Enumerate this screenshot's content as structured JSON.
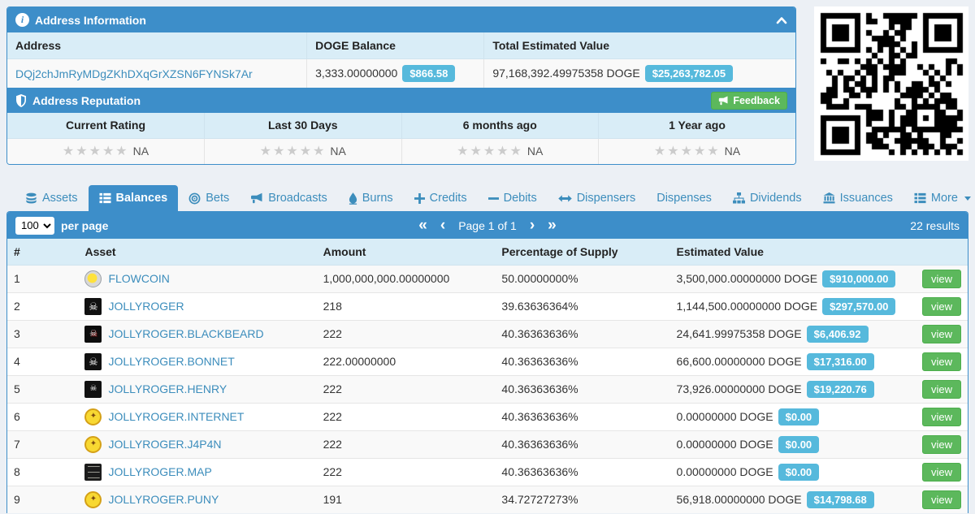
{
  "colors": {
    "header_blue": "#3d8ec9",
    "table_head_bg": "#d9edf7",
    "badge_blue": "#56b9dc",
    "button_green": "#5cb85c",
    "link_blue": "#3c8dbc",
    "star_gray": "#cccccc"
  },
  "address_info": {
    "title": "Address Information",
    "columns": [
      "Address",
      "DOGE Balance",
      "Total Estimated Value"
    ],
    "address": "DQj2chJmRyMDgZKhDXqGrXZSN6FYNSk7Ar",
    "doge_balance": "3,333.00000000",
    "doge_balance_usd": "$866.58",
    "total_value": "97,168,392.49975358 DOGE",
    "total_value_usd": "$25,263,782.05"
  },
  "reputation": {
    "title": "Address Reputation",
    "feedback_label": "Feedback",
    "columns": [
      "Current Rating",
      "Last 30 Days",
      "6 months ago",
      "1 Year ago"
    ],
    "ratings": [
      "NA",
      "NA",
      "NA",
      "NA"
    ],
    "stars_per_rating": 5
  },
  "qr_code": {
    "name": "address-qr-code"
  },
  "tabs": [
    {
      "label": "Assets",
      "icon": "database",
      "active": false
    },
    {
      "label": "Balances",
      "icon": "th-list",
      "active": true
    },
    {
      "label": "Bets",
      "icon": "bullseye",
      "active": false
    },
    {
      "label": "Broadcasts",
      "icon": "megaphone",
      "active": false
    },
    {
      "label": "Burns",
      "icon": "droplet",
      "active": false
    },
    {
      "label": "Credits",
      "icon": "plus",
      "active": false
    },
    {
      "label": "Debits",
      "icon": "minus",
      "active": false
    },
    {
      "label": "Dispensers",
      "icon": "arrows-h",
      "active": false
    },
    {
      "label": "Dispenses",
      "icon": "",
      "active": false
    },
    {
      "label": "Dividends",
      "icon": "sitemap",
      "active": false
    },
    {
      "label": "Issuances",
      "icon": "bank",
      "active": false
    },
    {
      "label": "More",
      "icon": "th-list",
      "active": false,
      "caret": true
    }
  ],
  "pagination": {
    "per_page": "100",
    "per_page_label": "per page",
    "first": "«",
    "prev": "‹",
    "page_label": "Page 1 of 1",
    "next": "›",
    "last": "»",
    "results_label": "22 results"
  },
  "table": {
    "columns": [
      "#",
      "Asset",
      "Amount",
      "Percentage of Supply",
      "Estimated Value",
      ""
    ],
    "view_label": "view",
    "rows": [
      {
        "num": "1",
        "asset": "FLOWCOIN",
        "icon": "coin",
        "glyph": "",
        "amount": "1,000,000,000.00000000",
        "pct": "50.00000000%",
        "value": "3,500,000.00000000 DOGE",
        "usd": "$910,000.00"
      },
      {
        "num": "2",
        "asset": "JOLLYROGER",
        "icon": "skull",
        "glyph": "☠",
        "amount": "218",
        "pct": "39.63636364%",
        "value": "1,144,500.00000000 DOGE",
        "usd": "$297,570.00"
      },
      {
        "num": "3",
        "asset": "JOLLYROGER.BLACKBEARD",
        "icon": "blackbeard",
        "glyph": "☠",
        "amount": "222",
        "pct": "40.36363636%",
        "value": "24,641.99975358 DOGE",
        "usd": "$6,406.92"
      },
      {
        "num": "4",
        "asset": "JOLLYROGER.BONNET",
        "icon": "skull",
        "glyph": "☠",
        "amount": "222.00000000",
        "pct": "40.36363636%",
        "value": "66,600.00000000 DOGE",
        "usd": "$17,316.00"
      },
      {
        "num": "5",
        "asset": "JOLLYROGER.HENRY",
        "icon": "skull-sm",
        "glyph": "☠",
        "amount": "222",
        "pct": "40.36363636%",
        "value": "73,926.00000000 DOGE",
        "usd": "$19,220.76"
      },
      {
        "num": "6",
        "asset": "JOLLYROGER.INTERNET",
        "icon": "seal",
        "glyph": "✦",
        "amount": "222",
        "pct": "40.36363636%",
        "value": "0.00000000 DOGE",
        "usd": "$0.00"
      },
      {
        "num": "7",
        "asset": "JOLLYROGER.J4P4N",
        "icon": "seal",
        "glyph": "✦",
        "amount": "222",
        "pct": "40.36363636%",
        "value": "0.00000000 DOGE",
        "usd": "$0.00"
      },
      {
        "num": "8",
        "asset": "JOLLYROGER.MAP",
        "icon": "map",
        "glyph": "",
        "amount": "222",
        "pct": "40.36363636%",
        "value": "0.00000000 DOGE",
        "usd": "$0.00"
      },
      {
        "num": "9",
        "asset": "JOLLYROGER.PUNY",
        "icon": "seal",
        "glyph": "✦",
        "amount": "191",
        "pct": "34.72727273%",
        "value": "56,918.00000000 DOGE",
        "usd": "$14,798.68"
      }
    ]
  }
}
